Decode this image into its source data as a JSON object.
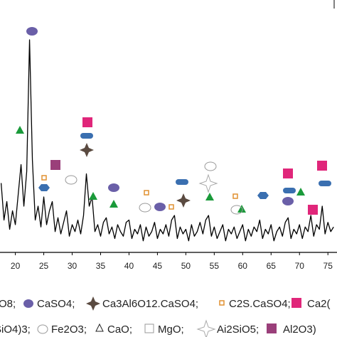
{
  "chart_data": {
    "type": "line",
    "x": [
      17.5,
      18,
      18.5,
      19,
      19.5,
      20,
      20.5,
      21,
      21.5,
      22,
      22.5,
      23,
      23.5,
      24,
      24.5,
      25,
      25.5,
      26,
      26.5,
      27,
      27.5,
      28,
      28.5,
      29,
      29.5,
      30,
      30.5,
      31,
      31.5,
      32,
      32.5,
      33,
      33.5,
      34,
      34.5,
      35,
      35.5,
      36,
      36.5,
      37,
      37.5,
      38,
      38.5,
      39,
      39.5,
      40,
      40.5,
      41,
      41.5,
      42,
      42.5,
      43,
      43.5,
      44,
      44.5,
      45,
      45.5,
      46,
      46.5,
      47,
      47.5,
      48,
      48.5,
      49,
      49.5,
      50,
      50.5,
      51,
      51.5,
      52,
      52.5,
      53,
      53.5,
      54,
      54.5,
      55,
      55.5,
      56,
      56.5,
      57,
      57.5,
      58,
      58.5,
      59,
      59.5,
      60,
      60.5,
      61,
      61.5,
      62,
      62.5,
      63,
      63.5,
      64,
      64.5,
      65,
      65.5,
      66,
      66.5,
      67,
      67.5,
      68,
      68.5,
      69,
      69.5,
      70,
      70.5,
      71,
      71.5,
      72,
      72.5,
      73,
      73.5,
      74,
      74.5,
      75,
      75.5,
      76
    ],
    "values": [
      30,
      14,
      22,
      10,
      18,
      12,
      25,
      38,
      20,
      35,
      92,
      40,
      14,
      20,
      11,
      24,
      12,
      18,
      22,
      9,
      15,
      8,
      13,
      18,
      7,
      12,
      9,
      14,
      8,
      16,
      34,
      20,
      24,
      9,
      12,
      7,
      13,
      15,
      8,
      11,
      6,
      12,
      9,
      7,
      13,
      14,
      6,
      10,
      8,
      12,
      5,
      11,
      7,
      9,
      13,
      6,
      10,
      8,
      12,
      7,
      14,
      16,
      6,
      11,
      8,
      10,
      5,
      12,
      7,
      9,
      13,
      8,
      14,
      16,
      7,
      11,
      6,
      9,
      12,
      5,
      10,
      8,
      11,
      6,
      9,
      12,
      5,
      10,
      7,
      11,
      9,
      14,
      6,
      10,
      8,
      12,
      5,
      9,
      11,
      7,
      13,
      15,
      6,
      10,
      8,
      12,
      6,
      11,
      9,
      16,
      7,
      12,
      10,
      20,
      8,
      13,
      9,
      11
    ],
    "color": "#000000",
    "xlim": [
      17.3,
      76.6
    ],
    "xticks": [
      20,
      25,
      30,
      35,
      40,
      45,
      50,
      55,
      60,
      65,
      70,
      75
    ],
    "ylim": [
      0,
      100
    ],
    "legend": [
      "O8;",
      "CaSO4;",
      "Ca3Al6O12.CaSO4;",
      "C2S.CaSO4;",
      "Ca2(",
      "SiO4)3;",
      "Fe2O3;",
      "CaO;",
      "MgO;",
      "Ai2SiO5;",
      "Al2O3)"
    ]
  }
}
